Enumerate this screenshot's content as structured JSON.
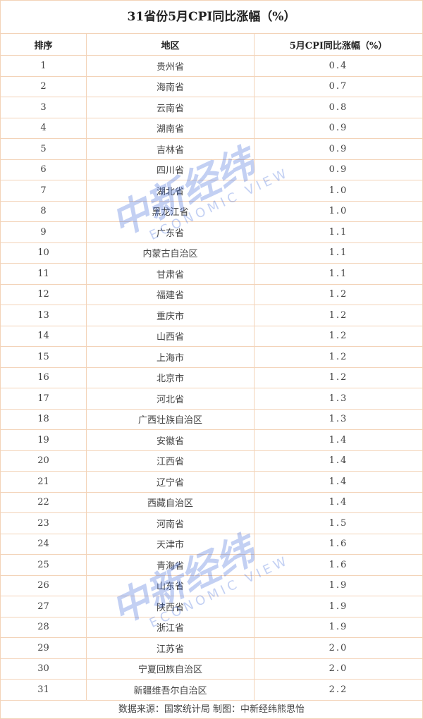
{
  "title": "31省份5月CPI同比涨幅（%）",
  "headers": [
    "排序",
    "地区",
    "5月CPI同比涨幅（%）"
  ],
  "footer": "数据来源：国家统计局  制图：中新经纬熊思怡",
  "watermark": {
    "cn": "中新经纬",
    "en": "ECONOMIC VIEW",
    "color": "#2a5bd7"
  },
  "border_color": "#f3d3b8",
  "chart_data": {
    "type": "table",
    "title": "31省份5月CPI同比涨幅（%）",
    "columns": [
      "排序",
      "地区",
      "5月CPI同比涨幅（%）"
    ],
    "rows": [
      [
        "1",
        "贵州省",
        "0.4"
      ],
      [
        "2",
        "海南省",
        "0.7"
      ],
      [
        "3",
        "云南省",
        "0.8"
      ],
      [
        "4",
        "湖南省",
        "0.9"
      ],
      [
        "5",
        "吉林省",
        "0.9"
      ],
      [
        "6",
        "四川省",
        "0.9"
      ],
      [
        "7",
        "湖北省",
        "1.0"
      ],
      [
        "8",
        "黑龙江省",
        "1.0"
      ],
      [
        "9",
        "广东省",
        "1.1"
      ],
      [
        "10",
        "内蒙古自治区",
        "1.1"
      ],
      [
        "11",
        "甘肃省",
        "1.1"
      ],
      [
        "12",
        "福建省",
        "1.2"
      ],
      [
        "13",
        "重庆市",
        "1.2"
      ],
      [
        "14",
        "山西省",
        "1.2"
      ],
      [
        "15",
        "上海市",
        "1.2"
      ],
      [
        "16",
        "北京市",
        "1.2"
      ],
      [
        "17",
        "河北省",
        "1.3"
      ],
      [
        "18",
        "广西壮族自治区",
        "1.3"
      ],
      [
        "19",
        "安徽省",
        "1.4"
      ],
      [
        "20",
        "江西省",
        "1.4"
      ],
      [
        "21",
        "辽宁省",
        "1.4"
      ],
      [
        "22",
        "西藏自治区",
        "1.4"
      ],
      [
        "23",
        "河南省",
        "1.5"
      ],
      [
        "24",
        "天津市",
        "1.6"
      ],
      [
        "25",
        "青海省",
        "1.6"
      ],
      [
        "26",
        "山东省",
        "1.9"
      ],
      [
        "27",
        "陕西省",
        "1.9"
      ],
      [
        "28",
        "浙江省",
        "1.9"
      ],
      [
        "29",
        "江苏省",
        "2.0"
      ],
      [
        "30",
        "宁夏回族自治区",
        "2.0"
      ],
      [
        "31",
        "新疆维吾尔自治区",
        "2.2"
      ]
    ],
    "source": "数据来源：国家统计局  制图：中新经纬熊思怡"
  }
}
